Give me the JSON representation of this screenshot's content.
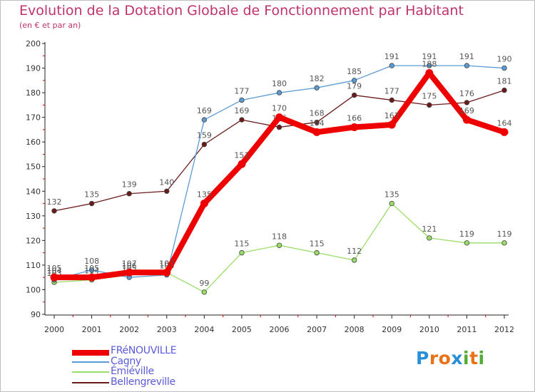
{
  "chart_data": {
    "type": "line",
    "title": "Evolution de la Dotation Globale de Fonctionnement par Habitant",
    "subtitle": "(en € et par an)",
    "xlabel": "",
    "ylabel": "",
    "categories": [
      "2000",
      "2001",
      "2002",
      "2003",
      "2004",
      "2005",
      "2006",
      "2007",
      "2008",
      "2009",
      "2010",
      "2011",
      "2012"
    ],
    "ylim": [
      90,
      200
    ],
    "yticks": [
      90,
      100,
      110,
      120,
      130,
      140,
      150,
      160,
      170,
      180,
      190,
      200
    ],
    "grid": false,
    "legend_position": "bottom-left",
    "series": [
      {
        "name": "Bellengreville",
        "color": "#6b1a1a",
        "values": [
          132,
          135,
          139,
          140,
          159,
          169,
          166,
          168,
          179,
          177,
          175,
          176,
          181
        ],
        "labels": [
          "132",
          "135",
          "139",
          "140",
          "159",
          "169",
          "166",
          "168",
          "179",
          "177",
          "175",
          "176",
          "181"
        ]
      },
      {
        "name": "Émiéville",
        "color": "#99dd66",
        "values": [
          103,
          104,
          106,
          107,
          99,
          115,
          118,
          115,
          112,
          135,
          121,
          119,
          119
        ],
        "labels": [
          "103",
          "104",
          "106",
          "107",
          "99",
          "115",
          "118",
          "115",
          "112",
          "135",
          "121",
          "119",
          "119"
        ]
      },
      {
        "name": "Cagny",
        "color": "#5b9bd5",
        "values": [
          104,
          108,
          105,
          106,
          169,
          177,
          180,
          182,
          185,
          191,
          191,
          191,
          190
        ],
        "labels": [
          "104",
          "108",
          "105",
          "106",
          "169",
          "177",
          "180",
          "182",
          "185",
          "191",
          "191",
          "191",
          "190"
        ]
      },
      {
        "name": "FRéNOUVILLE",
        "color": "#ee0000",
        "values": [
          105,
          105,
          107,
          107,
          135,
          151,
          170,
          164,
          166,
          167,
          188,
          169,
          164
        ],
        "labels": [
          "105",
          "105",
          "107",
          "107",
          "135",
          "151",
          "170",
          "164",
          "166",
          "167",
          "188",
          "169",
          "164"
        ]
      }
    ]
  },
  "legend": {
    "items": [
      {
        "label": "FRéNOUVILLE",
        "color": "#ee0000"
      },
      {
        "label": "Cagny",
        "color": "#5b9bd5"
      },
      {
        "label": "Émiéville",
        "color": "#99dd66"
      },
      {
        "label": "Bellengreville",
        "color": "#6b1a1a"
      }
    ]
  },
  "logo": {
    "letters": [
      "P",
      "r",
      "o",
      "x",
      "i",
      "t",
      "i"
    ],
    "colors": [
      "#2a8fd6",
      "#e8731a",
      "#e8731a",
      "#2a8fd6",
      "#55aa33",
      "#e8731a",
      "#55aa33"
    ],
    "text": "Proxiti"
  }
}
